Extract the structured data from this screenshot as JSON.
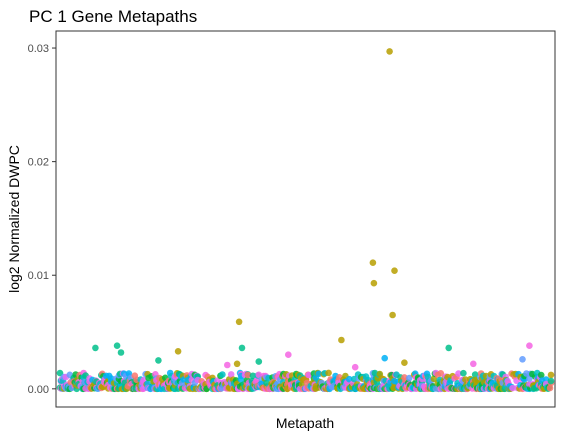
{
  "chart_data": {
    "type": "scatter",
    "title": "PC 1 Gene Metapaths",
    "xlabel": "Metapath",
    "ylabel": "log2 Normalized DWPC",
    "ylim": [
      -0.0016,
      0.0315
    ],
    "y_ticks": [
      0.0,
      0.01,
      0.02,
      0.03
    ],
    "y_tick_labels": [
      "0.00",
      "0.01",
      "0.02",
      "0.03"
    ],
    "x_ticks": [],
    "grid": false,
    "legend": "none",
    "n_metapaths": 500,
    "colors": {
      "series_1": "#F8766D",
      "series_2": "#B79F00",
      "series_3": "#00BA38",
      "series_4": "#00BFC4",
      "series_5": "#619CFF",
      "series_6": "#F564E3",
      "series_7": "#00C08B",
      "series_8": "#00B0F6",
      "series_9": "#E76BF3",
      "series_10": "#A3A500"
    },
    "highlighted_points": [
      {
        "x": 335,
        "y": 0.0297,
        "color": "#B79F00"
      },
      {
        "x": 318,
        "y": 0.0111,
        "color": "#B79F00"
      },
      {
        "x": 340,
        "y": 0.0104,
        "color": "#B79F00"
      },
      {
        "x": 319,
        "y": 0.0093,
        "color": "#B79F00"
      },
      {
        "x": 338,
        "y": 0.0065,
        "color": "#B79F00"
      },
      {
        "x": 182,
        "y": 0.0059,
        "color": "#B79F00"
      },
      {
        "x": 286,
        "y": 0.0043,
        "color": "#B79F00"
      },
      {
        "x": 477,
        "y": 0.0038,
        "color": "#F564E3"
      },
      {
        "x": 58,
        "y": 0.0038,
        "color": "#00C08B"
      },
      {
        "x": 36,
        "y": 0.0036,
        "color": "#00C08B"
      },
      {
        "x": 185,
        "y": 0.0036,
        "color": "#00C08B"
      },
      {
        "x": 395,
        "y": 0.0036,
        "color": "#00C08B"
      },
      {
        "x": 120,
        "y": 0.0033,
        "color": "#B79F00"
      },
      {
        "x": 62,
        "y": 0.0032,
        "color": "#00C08B"
      },
      {
        "x": 232,
        "y": 0.003,
        "color": "#F564E3"
      },
      {
        "x": 330,
        "y": 0.0027,
        "color": "#00B0F6"
      },
      {
        "x": 470,
        "y": 0.0026,
        "color": "#619CFF"
      },
      {
        "x": 100,
        "y": 0.0025,
        "color": "#00C08B"
      },
      {
        "x": 202,
        "y": 0.0024,
        "color": "#00C08B"
      },
      {
        "x": 170,
        "y": 0.0021,
        "color": "#F564E3"
      },
      {
        "x": 180,
        "y": 0.0022,
        "color": "#B79F00"
      },
      {
        "x": 350,
        "y": 0.0023,
        "color": "#B79F00"
      },
      {
        "x": 420,
        "y": 0.0022,
        "color": "#F564E3"
      },
      {
        "x": 300,
        "y": 0.0019,
        "color": "#F564E3"
      }
    ]
  }
}
